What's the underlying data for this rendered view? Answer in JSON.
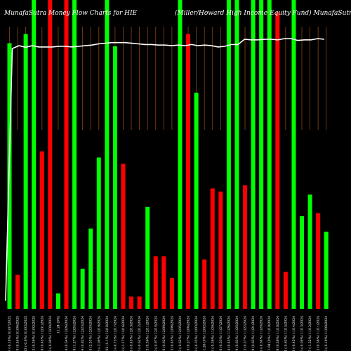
{
  "title_left": "MunafaSutra Money Flow Charts for HIE",
  "title_right": "(Miller/Howard High Income Equity Fund) MunafaSutra.com",
  "colors": {
    "background": "#000000",
    "up": "#00ff00",
    "down": "#ff0000",
    "price_line": "#ffffff",
    "gridline": "#8b4513"
  },
  "chart_data": {
    "type": "bar",
    "title": "MunafaSutra Money Flow Charts for HIE",
    "subtitle": "(Miller/Howard High Income Equity Fund) MunafaSutra.com",
    "grid": "vertical lines in the upper part of the chart",
    "categories": [
      "Tue 07 Jan 2025",
      "Mon 06 Jan 2025",
      "Fri 03 Jan 2025",
      "Thu 02 Jan 2025",
      "Tue 31 Dec 2024",
      "Mon 30 Dec 2024",
      "Fri 27 Dec 2024",
      "Thu 26 Dec 2024",
      "Tue 24 Dec 2024",
      "Mon 23 Dec 2024",
      "Fri 20 Dec 2024",
      "Thu 19 Dec 2024",
      "Wed 18 Dec 2024",
      "Tue 17 Dec 2024",
      "Mon 16 Dec 2024",
      "Fri 13 Dec 2024",
      "Thu 12 Dec 2024",
      "Wed 11 Dec 2024",
      "Tue 10 Dec 2024",
      "Mon 09 Dec 2024",
      "Fri 06 Dec 2024",
      "Thu 05 Dec 2024",
      "Wed 04 Dec 2024",
      "Tue 03 Dec 2024",
      "Mon 02 Dec 2024",
      "Fri 29 Nov 2024",
      "Wed 27 Nov 2024",
      "Tue 26 Nov 2024",
      "Mon 25 Nov 2024",
      "Fri 22 Nov 2024",
      "Thu 21 Nov 2024",
      "Wed 20 Nov 2024",
      "Tue 19 Nov 2024",
      "Mon 18 Nov 2024",
      "Fri 15 Nov 2024",
      "Thu 14 Nov 2024",
      "Wed 13 Nov 2024",
      "Tue 12 Nov 2024",
      "Mon 11 Nov 2024",
      "Fri 08 Nov 2024"
    ],
    "tick_labels": [
      "11.27 (-0.18%) 01/07/2025",
      "11.29 (0.54%) 01/06/2025",
      "11.23 (-0.8%) 01/03/2025",
      "11.32 (0.36%) 01/02/2025",
      "11.28 (0.45%) 12/31/2024",
      "11.23 (-0.09%) 12/30/2024",
      "11.24 (0%)",
      "11.24 (0.54%) 12/26/2024",
      "11.18 (1.27%) 12/24/2024",
      "11.04 (0.82%) 12/23/2024",
      "10.95 (2.53%) 12/20/2024",
      "10.68 (-3.09%) 12/19/2024",
      "11.02 (1.1%) 12/18/2024",
      "10.90 (-0.73%) 12/17/2024",
      "10.98 (-1.17%) 12/16/2024",
      "11.11 (-0.45%) 12/13/2024",
      "11.16 (-0.62%) 12/12/2024",
      "11.23 (0.36%) 12/11/2024",
      "11.19 (-0.97%) 12/10/2024",
      "11.30 (0.62%) 12/09/2024",
      "11.23 (0.45%) 12/06/2024",
      "11.18 (-0.62%) 12/05/2024",
      "11.25 (0.27%) 12/04/2024",
      "11.22 (-0.35%) 12/03/2024",
      "11.26 (0%) 12/02/2024",
      "11.26 (-0.36%) 11/29/2024",
      "11.30 (0.53%) 11/27/2024",
      "11.24 (0.45%) 11/26/2024",
      "11.19 (0.63%) 11/25/2024",
      "11.12 (0.27%) 11/22/2024",
      "11.09 (0.63%) 11/21/2024",
      "11.02 (-0.54%) 11/20/2024",
      "11.08 (0%) 11/19/2024",
      "11.08 (0.36%) 11/18/2024",
      "11.04 (-0.63%) 11/15/2024",
      "11.11 (-0.45%) 11/14/2024",
      "11.16 (-0.09%) 11/13/2024",
      "11.17 (-1.32%) 11/12/2024",
      "11.32 (0.36%) 11/11/2024",
      "11.28 (-0.18%) 11/08/2024"
    ],
    "bar_height_max": 100,
    "series": [
      {
        "values": [
          86,
          11,
          89,
          100,
          51,
          100,
          5,
          100,
          100,
          13,
          26,
          49,
          100,
          85,
          47,
          4,
          4,
          33,
          17,
          17,
          10,
          100,
          89,
          70,
          16,
          39,
          38,
          100,
          100,
          40,
          100,
          100,
          100,
          96,
          12,
          100,
          30,
          37,
          31,
          25
        ],
        "directions": [
          "up",
          "down",
          "up",
          "up",
          "down",
          "down",
          "up",
          "down",
          "up",
          "up",
          "up",
          "up",
          "up",
          "up",
          "down",
          "down",
          "down",
          "up",
          "down",
          "down",
          "down",
          "up",
          "down",
          "up",
          "down",
          "down",
          "down",
          "up",
          "up",
          "down",
          "up",
          "up",
          "up",
          "down",
          "down",
          "up",
          "up",
          "up",
          "down",
          "up"
        ]
      }
    ],
    "price_line": [
      2.6,
      84.3,
      85.2,
      84.7,
      85.2,
      84.8,
      84.8,
      84.8,
      85.0,
      85.0,
      84.8,
      85.0,
      85.2,
      85.4,
      85.8,
      86.0,
      86.2,
      86.2,
      86.2,
      86.0,
      85.8,
      85.6,
      85.6,
      85.4,
      85.4,
      85.2,
      85.4,
      85.2,
      85.6,
      85.2,
      85.4,
      85.2,
      84.8,
      85.0,
      85.6,
      85.6,
      87.3,
      87.1,
      87.1,
      87.3,
      87.3,
      87.1,
      87.5,
      87.5,
      86.9,
      87.1,
      87.1,
      87.5,
      87.3
    ]
  }
}
